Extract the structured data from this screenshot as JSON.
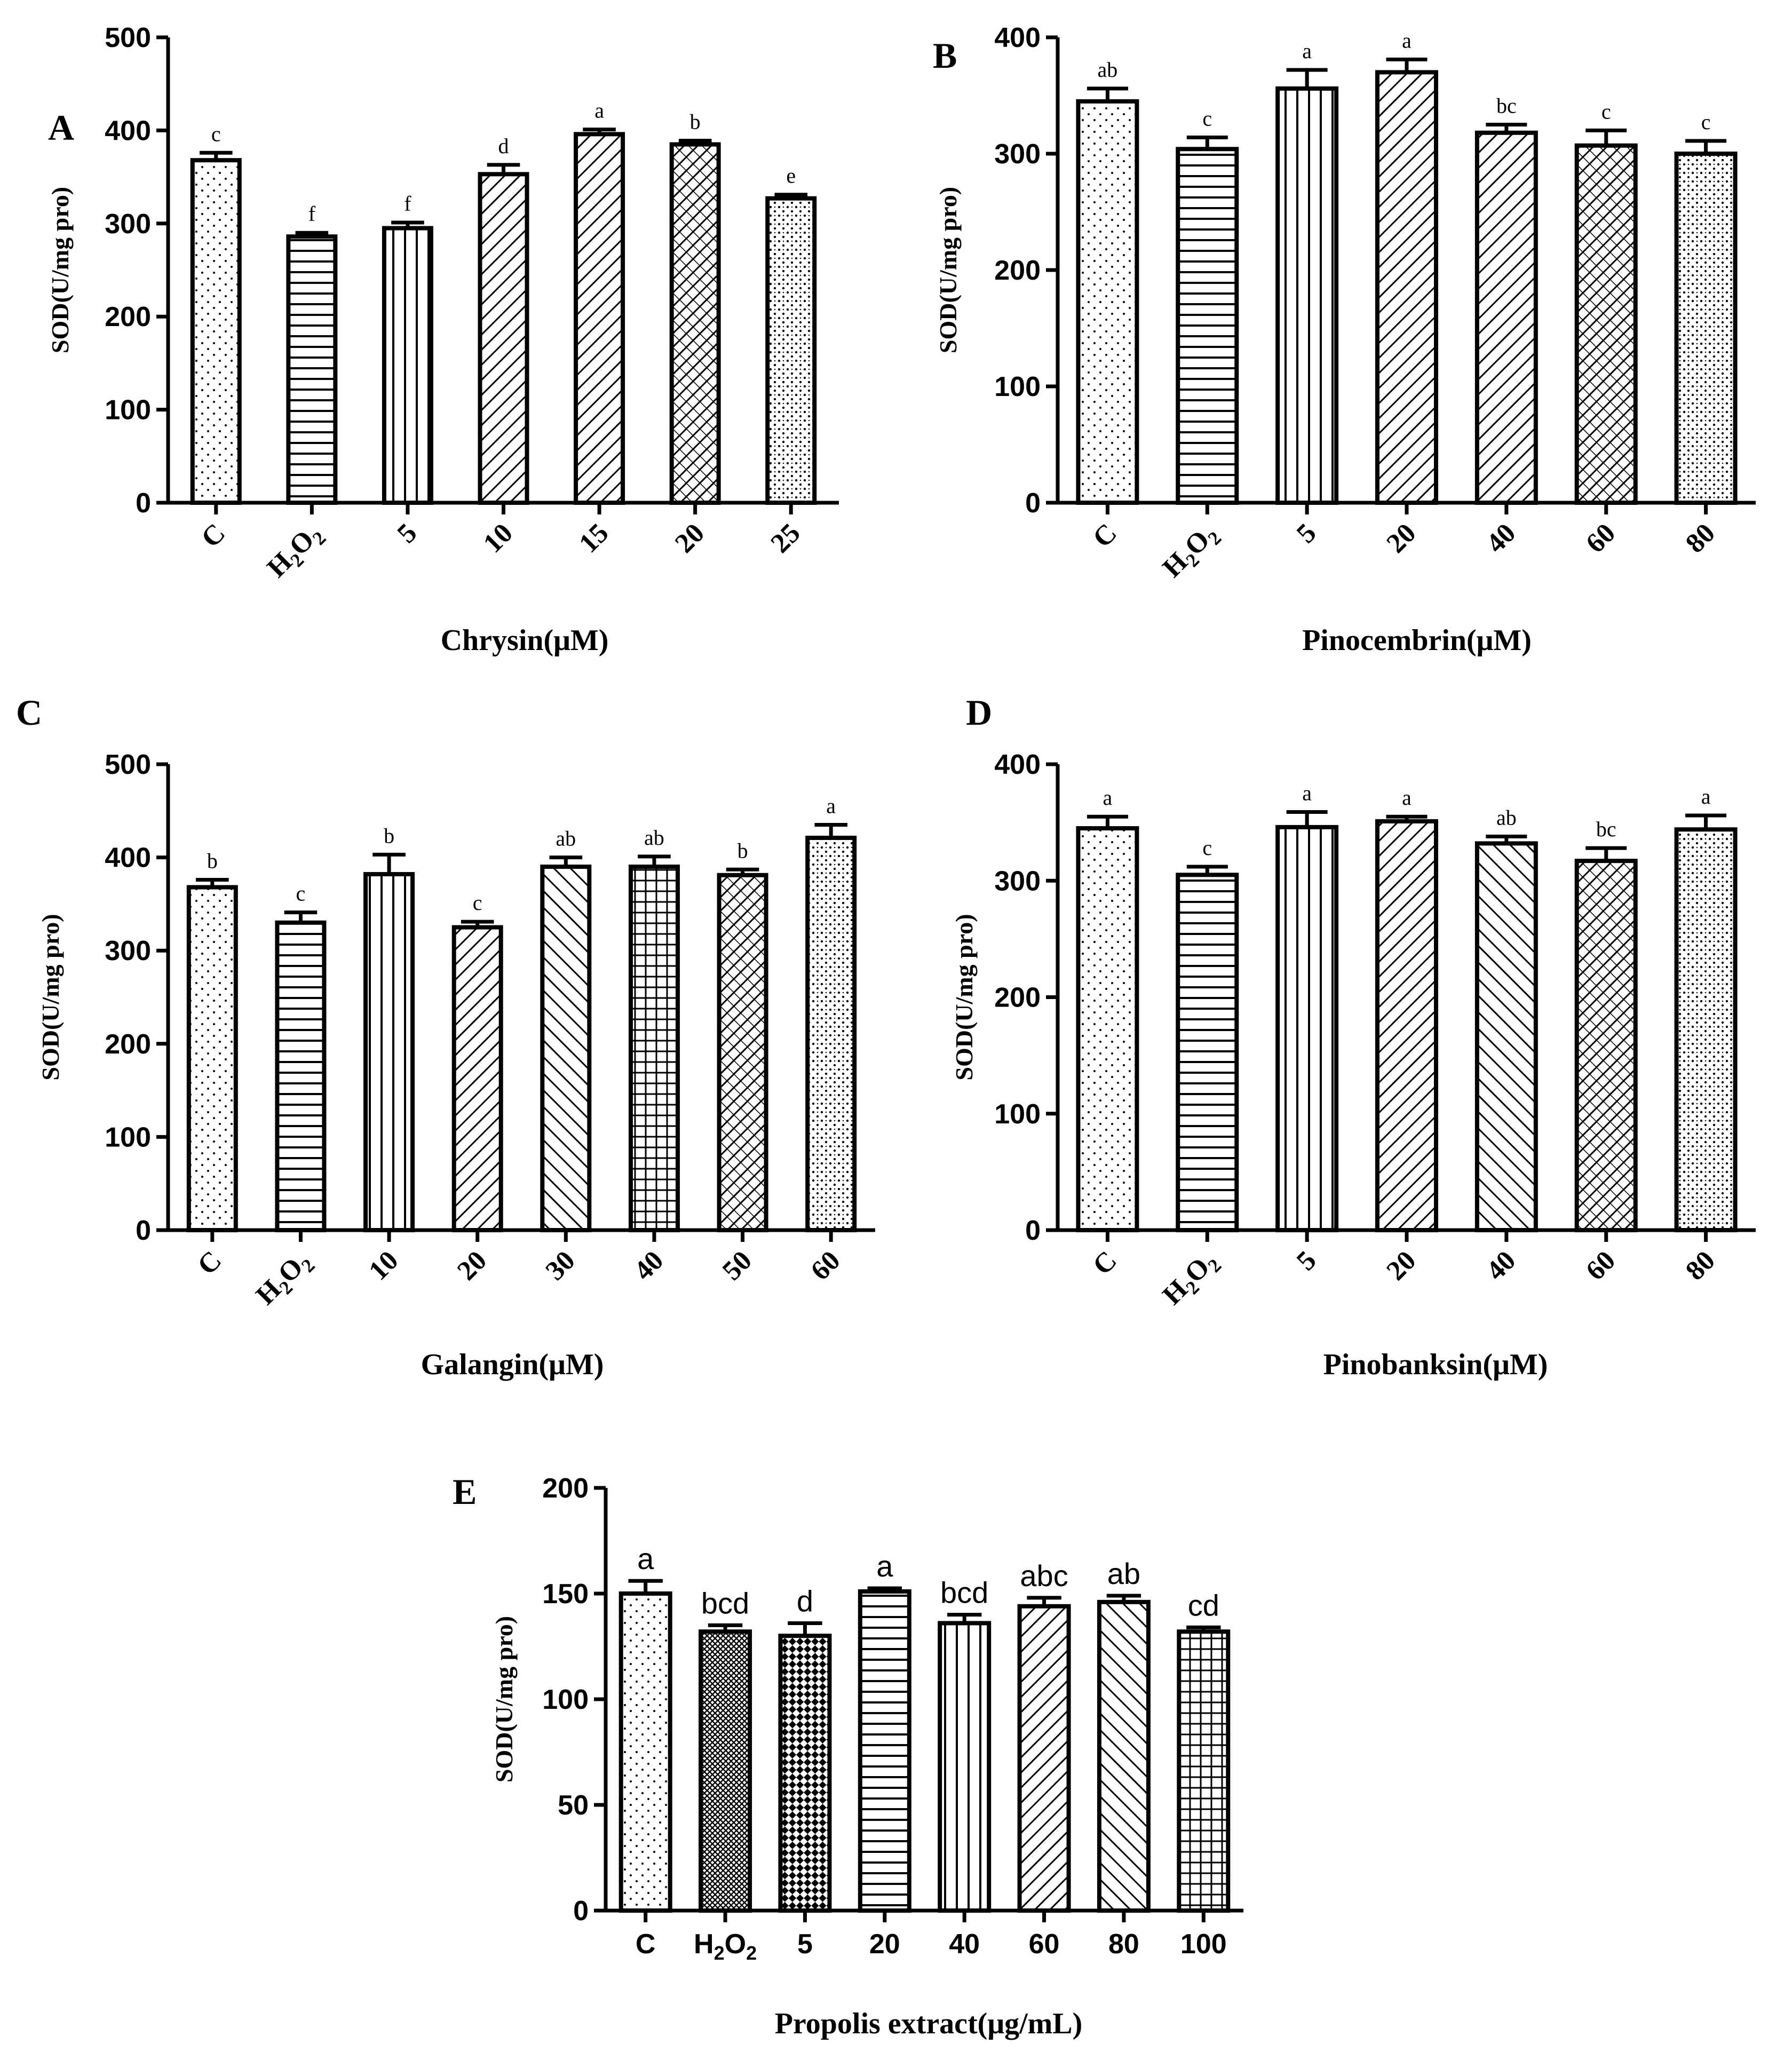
{
  "chart_data": [
    {
      "panel": "A",
      "type": "bar",
      "xlabel": "Chrysin(μM)",
      "ylabel": "SOD(U/mg pro)",
      "ylim": [
        0,
        500
      ],
      "yticks": [
        0,
        100,
        200,
        300,
        400,
        500
      ],
      "categories": [
        "C",
        "H2O2",
        "5",
        "10",
        "15",
        "20",
        "25"
      ],
      "values": [
        368,
        286,
        295,
        353,
        396,
        385,
        327
      ],
      "errors": [
        8,
        4,
        6,
        10,
        5,
        4,
        4
      ],
      "letters": [
        "c",
        "f",
        "f",
        "d",
        "a",
        "b",
        "e"
      ],
      "patterns": [
        "dots",
        "hlines",
        "vlines",
        "diag",
        "diag",
        "cross",
        "dots2"
      ]
    },
    {
      "panel": "B",
      "type": "bar",
      "xlabel": "Pinocembrin(μM)",
      "ylabel": "SOD(U/mg pro)",
      "ylim": [
        0,
        400
      ],
      "yticks": [
        0,
        100,
        200,
        300,
        400
      ],
      "categories": [
        "C",
        "H2O2",
        "5",
        "20",
        "40",
        "60",
        "80"
      ],
      "values": [
        345,
        304,
        356,
        370,
        318,
        307,
        300
      ],
      "errors": [
        11,
        10,
        16,
        11,
        7,
        13,
        11
      ],
      "letters": [
        "ab",
        "c",
        "a",
        "a",
        "bc",
        "c",
        "c"
      ],
      "patterns": [
        "dots",
        "hlines",
        "vlines",
        "diag",
        "diag",
        "cross",
        "dots2"
      ]
    },
    {
      "panel": "C",
      "type": "bar",
      "xlabel": "Galangin(μM)",
      "ylabel": "SOD(U/mg pro)",
      "ylim": [
        0,
        500
      ],
      "yticks": [
        0,
        100,
        200,
        300,
        400,
        500
      ],
      "categories": [
        "C",
        "H2O2",
        "10",
        "20",
        "30",
        "40",
        "50",
        "60"
      ],
      "values": [
        368,
        330,
        382,
        325,
        390,
        390,
        381,
        421
      ],
      "errors": [
        8,
        11,
        21,
        6,
        10,
        11,
        6,
        14
      ],
      "letters": [
        "b",
        "c",
        "b",
        "c",
        "ab",
        "ab",
        "b",
        "a"
      ],
      "patterns": [
        "dots",
        "hlines",
        "vlines",
        "diag",
        "diagb",
        "grid",
        "cross",
        "dots2"
      ]
    },
    {
      "panel": "D",
      "type": "bar",
      "xlabel": "Pinobanksin(μM)",
      "ylabel": "SOD(U/mg pro)",
      "ylim": [
        0,
        400
      ],
      "yticks": [
        0,
        100,
        200,
        300,
        400
      ],
      "categories": [
        "C",
        "H2O2",
        "5",
        "20",
        "40",
        "60",
        "80"
      ],
      "values": [
        345,
        305,
        346,
        351,
        332,
        317,
        344
      ],
      "errors": [
        10,
        7,
        13,
        4,
        6,
        11,
        12
      ],
      "letters": [
        "a",
        "c",
        "a",
        "a",
        "ab",
        "bc",
        "a"
      ],
      "patterns": [
        "dots",
        "hlines",
        "vlines",
        "diag",
        "diagb",
        "cross",
        "dots2"
      ]
    },
    {
      "panel": "E",
      "type": "bar",
      "xlabel": "Propolis extract(μg/mL)",
      "ylabel": "SOD(U/mg pro)",
      "ylim": [
        0,
        200
      ],
      "yticks": [
        0,
        50,
        100,
        150,
        200
      ],
      "categories": [
        "C",
        "H2O2",
        "5",
        "20",
        "40",
        "60",
        "80",
        "100"
      ],
      "values": [
        150,
        132,
        130,
        151,
        136,
        144,
        146,
        132
      ],
      "errors": [
        6,
        3,
        6,
        1.5,
        4,
        4,
        3,
        2
      ],
      "letters": [
        "a",
        "bcd",
        "d",
        "a",
        "bcd",
        "abc",
        "ab",
        "cd"
      ],
      "patterns": [
        "dots",
        "hatchfine",
        "checker",
        "hlines",
        "vlines",
        "diag",
        "diagb",
        "grid"
      ]
    }
  ]
}
